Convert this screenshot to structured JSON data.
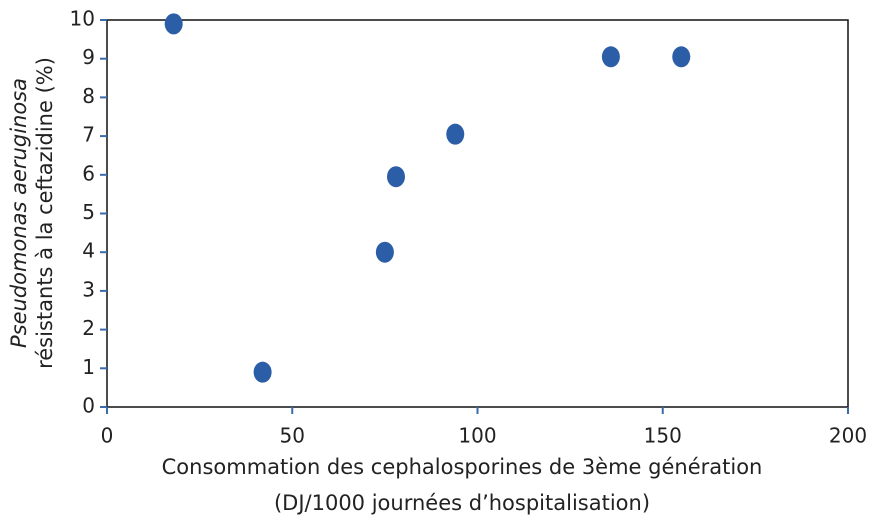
{
  "chart_data": {
    "type": "scatter",
    "xlabel": [
      "Consommation des cephalosporines de 3ème génération",
      "(DJ/1000 journées d’hospitalisation)"
    ],
    "ylabel": [
      "Pseudomonas aeruginosa",
      "résistants à la ceftazidine (%)"
    ],
    "x": [
      18,
      42,
      75,
      78,
      94,
      136,
      155
    ],
    "values": [
      9.9,
      0.9,
      4,
      5.95,
      7.05,
      9.05,
      9.05
    ],
    "color": "#2c5ea8",
    "xlim": [
      0,
      200
    ],
    "xticks": [
      0,
      50,
      100,
      150,
      200
    ],
    "ylim": [
      0,
      10
    ],
    "yticks": [
      0,
      1,
      2,
      3,
      4,
      5,
      6,
      7,
      8,
      9,
      10
    ],
    "grid": false
  }
}
